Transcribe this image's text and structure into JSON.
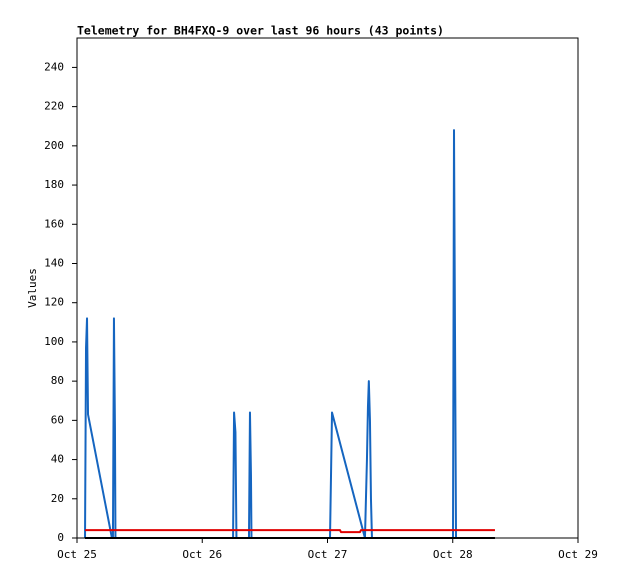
{
  "chart_data": {
    "type": "line",
    "title": "Telemetry for BH4FXQ-9 over last 96 hours (43 points)",
    "y_label": "Values",
    "xlim": [
      25,
      29
    ],
    "xticks": [
      {
        "value": 25,
        "label": "Oct 25"
      },
      {
        "value": 26,
        "label": "Oct 26"
      },
      {
        "value": 27,
        "label": "Oct 27"
      },
      {
        "value": 28,
        "label": "Oct 28"
      },
      {
        "value": 29,
        "label": "Oct 29"
      }
    ],
    "ylim": [
      0,
      255
    ],
    "yticks": [
      0,
      20,
      40,
      60,
      80,
      100,
      120,
      140,
      160,
      180,
      200,
      220,
      240
    ],
    "grid": false,
    "series": [
      {
        "color": "#1565c0",
        "x": [
          25.064,
          25.068,
          25.072,
          25.08,
          25.088,
          25.279,
          25.287,
          25.295,
          25.303,
          25.307,
          26.246,
          26.254,
          26.265,
          26.273,
          26.373,
          26.381,
          26.389,
          26.393,
          27.02,
          27.028,
          27.036,
          27.299,
          27.315,
          27.323,
          27.33,
          27.339,
          27.347,
          27.355,
          28.002,
          28.01,
          28.018,
          28.026
        ],
        "values": [
          0,
          48,
          97,
          112,
          63,
          0,
          0,
          112,
          56,
          0,
          0,
          64,
          54,
          0,
          0,
          64,
          32,
          0,
          0,
          32,
          64,
          0,
          40,
          67,
          80,
          60,
          20,
          0,
          0,
          208,
          104,
          0
        ]
      },
      {
        "color": "#e00000",
        "x": [
          25.064,
          27.1,
          27.108,
          27.259,
          27.267,
          28.337
        ],
        "values": [
          4,
          4,
          3,
          3,
          4,
          4
        ]
      },
      {
        "color": "#000000",
        "x": [
          25.064,
          28.337
        ],
        "values": [
          0,
          0
        ]
      }
    ]
  }
}
